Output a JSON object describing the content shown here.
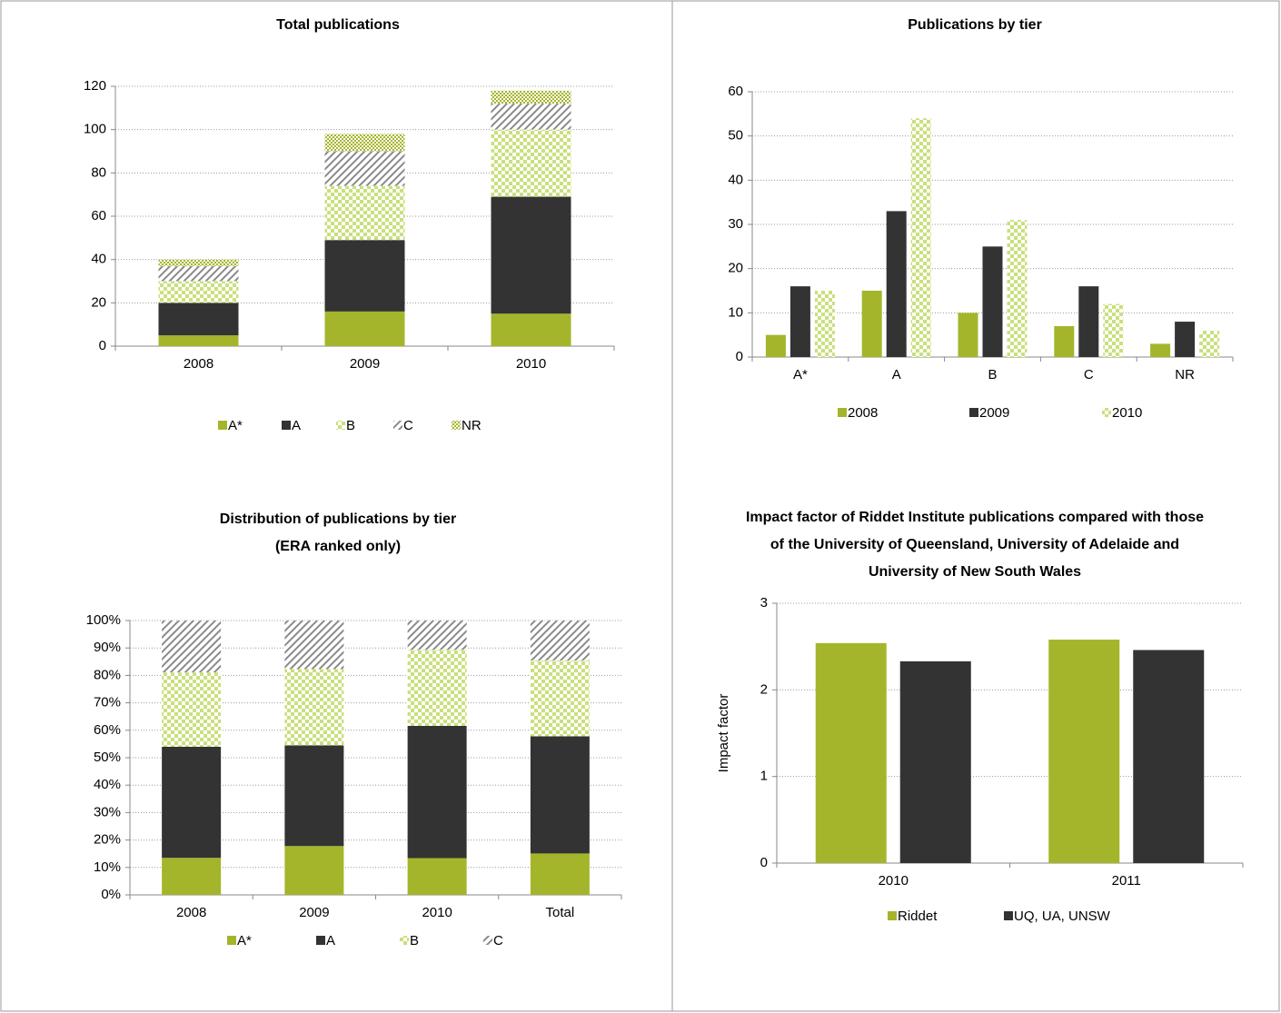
{
  "chart_data": [
    {
      "type": "stacked-bar",
      "title": [
        "Total publications"
      ],
      "categories": [
        "2008",
        "2009",
        "2010"
      ],
      "series": [
        {
          "name": "A*",
          "color": "#a5b52b",
          "pattern": "solid",
          "values": [
            5,
            16,
            15
          ]
        },
        {
          "name": "A",
          "color": "#333333",
          "pattern": "solid",
          "values": [
            15,
            33,
            54
          ]
        },
        {
          "name": "B",
          "color": "#c9e07c",
          "pattern": "checker",
          "values": [
            10,
            25,
            31
          ]
        },
        {
          "name": "C",
          "color": "#8a8a8a",
          "pattern": "diagonal",
          "values": [
            7,
            16,
            12
          ]
        },
        {
          "name": "NR",
          "color": "#a5b52b",
          "pattern": "fine-checker",
          "values": [
            3,
            8,
            6
          ]
        }
      ],
      "ylim": [
        0,
        120
      ],
      "yticks": [
        0,
        20,
        40,
        60,
        80,
        100,
        120
      ],
      "grid": true,
      "legend": "bottom"
    },
    {
      "type": "grouped-bar",
      "title": [
        "Publications by tier"
      ],
      "categories": [
        "A*",
        "A",
        "B",
        "C",
        "NR"
      ],
      "series": [
        {
          "name": "2008",
          "color": "#a5b52b",
          "pattern": "solid",
          "values": [
            5,
            15,
            10,
            7,
            3
          ]
        },
        {
          "name": "2009",
          "color": "#333333",
          "pattern": "solid",
          "values": [
            16,
            33,
            25,
            16,
            8
          ]
        },
        {
          "name": "2010",
          "color": "#c9e07c",
          "pattern": "checker",
          "values": [
            15,
            54,
            31,
            12,
            6
          ]
        }
      ],
      "ylim": [
        0,
        60
      ],
      "yticks": [
        0,
        10,
        20,
        30,
        40,
        50,
        60
      ],
      "grid": true,
      "legend": "bottom"
    },
    {
      "type": "stacked-bar",
      "title": [
        "Distribution of publications by tier",
        "(ERA ranked only)"
      ],
      "categories": [
        "2008",
        "2009",
        "2010",
        "Total"
      ],
      "series": [
        {
          "name": "A*",
          "color": "#a5b52b",
          "pattern": "solid",
          "values": [
            13.5,
            17.8,
            13.4,
            15.1
          ]
        },
        {
          "name": "A",
          "color": "#333333",
          "pattern": "solid",
          "values": [
            40.5,
            36.7,
            48.2,
            42.7
          ]
        },
        {
          "name": "B",
          "color": "#c9e07c",
          "pattern": "checker",
          "values": [
            27.1,
            27.8,
            27.7,
            27.6
          ]
        },
        {
          "name": "C",
          "color": "#8a8a8a",
          "pattern": "diagonal",
          "values": [
            18.9,
            17.7,
            10.7,
            14.6
          ]
        }
      ],
      "ylim": [
        0,
        100
      ],
      "yticks": [
        {
          "value": 0,
          "label": "0%"
        },
        {
          "value": 10,
          "label": "10%"
        },
        {
          "value": 20,
          "label": "20%"
        },
        {
          "value": 30,
          "label": "30%"
        },
        {
          "value": 40,
          "label": "40%"
        },
        {
          "value": 50,
          "label": "50%"
        },
        {
          "value": 60,
          "label": "60%"
        },
        {
          "value": 70,
          "label": "70%"
        },
        {
          "value": 80,
          "label": "80%"
        },
        {
          "value": 90,
          "label": "90%"
        },
        {
          "value": 100,
          "label": "100%"
        }
      ],
      "grid": true,
      "legend": "bottom"
    },
    {
      "type": "grouped-bar",
      "title": [
        "Impact factor of Riddet Institute publications compared with those",
        "of the University of Queensland, University of Adelaide and",
        "University of New South Wales"
      ],
      "ylabel": "Impact factor",
      "categories": [
        "2010",
        "2011"
      ],
      "series": [
        {
          "name": "Riddet",
          "color": "#a5b52b",
          "pattern": "solid",
          "values": [
            2.54,
            2.58
          ]
        },
        {
          "name": "UQ, UA, UNSW",
          "color": "#333333",
          "pattern": "solid",
          "values": [
            2.33,
            2.46
          ]
        }
      ],
      "ylim": [
        0,
        3
      ],
      "yticks": [
        0,
        1,
        2,
        3
      ],
      "grid": true,
      "legend": "bottom"
    }
  ]
}
